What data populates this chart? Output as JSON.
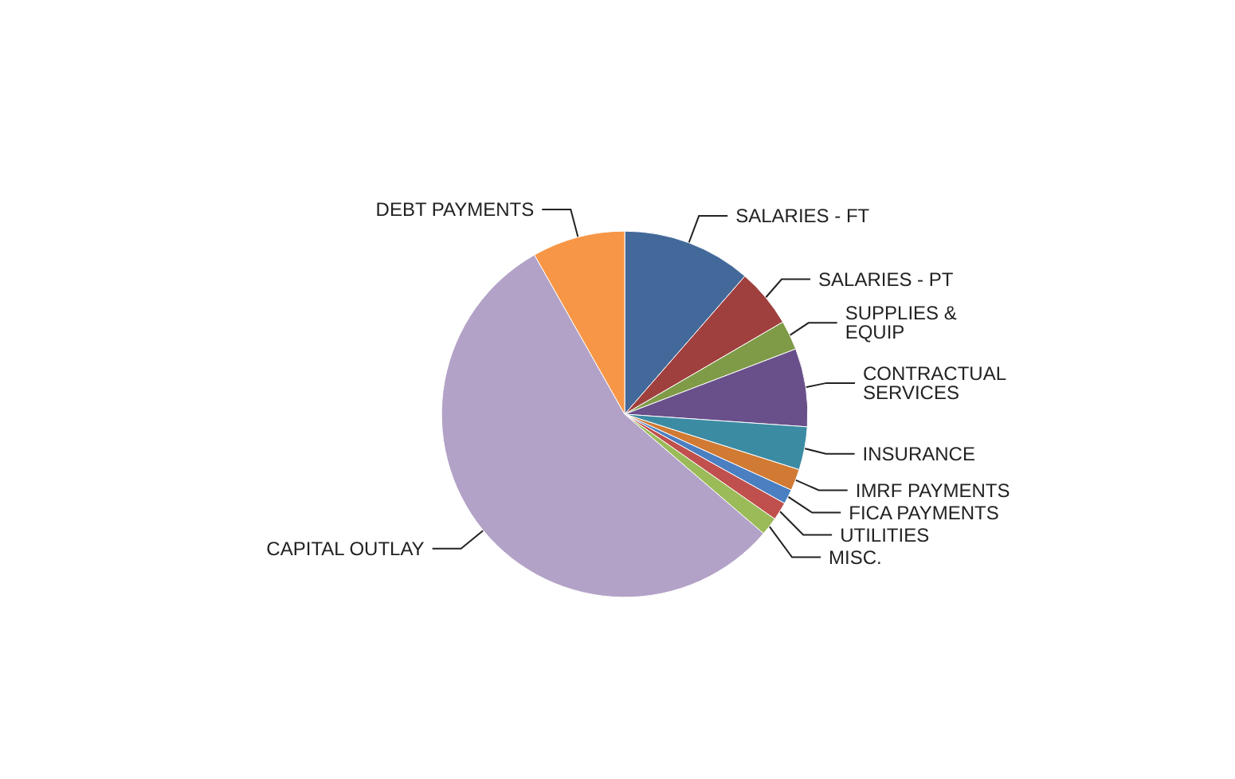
{
  "chart_data": {
    "type": "pie",
    "categories": [
      "SALARIES - FT",
      "SALARIES - PT",
      "SUPPLIES & EQUIP",
      "CONTRACTUAL SERVICES",
      "INSURANCE",
      "IMRF PAYMENTS",
      "FICA PAYMENTS",
      "UTILITIES",
      "MISC.",
      "CAPITAL OUTLAY",
      "DEBT PAYMENTS"
    ],
    "values": [
      11.4,
      5.2,
      2.6,
      6.9,
      3.8,
      1.9,
      1.3,
      1.6,
      1.6,
      55.5,
      8.2
    ],
    "colors": [
      "#43699a",
      "#a0403e",
      "#7f9b48",
      "#69508a",
      "#3b8ba3",
      "#d07a33",
      "#4a7fc1",
      "#c0504d",
      "#9bbb59",
      "#b3a2c7",
      "#f79646"
    ],
    "legend": false
  }
}
